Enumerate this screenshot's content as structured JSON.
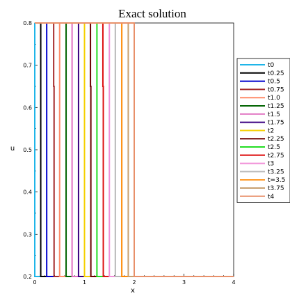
{
  "chart_data": {
    "type": "line",
    "title": "Exact solution",
    "xlabel": "x",
    "ylabel": "u",
    "xlim": [
      0,
      4
    ],
    "ylim": [
      0.2,
      0.8
    ],
    "xticks": [
      "0",
      "1",
      "2",
      "3",
      "4"
    ],
    "yticks": [
      "0.2",
      "0.3",
      "0.4",
      "0.5",
      "0.6",
      "0.7",
      "0.8"
    ],
    "grid": false,
    "legend_position": "right",
    "series": [
      {
        "name": "t0",
        "color": "#1fb5e8",
        "drop_x": 0.0,
        "mid_drop": false
      },
      {
        "name": "t0.25",
        "color": "#000000",
        "drop_x": 0.12,
        "mid_drop": false
      },
      {
        "name": "t0.5",
        "color": "#0000cc",
        "drop_x": 0.24,
        "mid_drop": false
      },
      {
        "name": "t0.75",
        "color": "#a52a2a",
        "drop_x": 0.38,
        "mid_drop": true
      },
      {
        "name": "t1.0",
        "color": "#ff8c69",
        "drop_x": 0.5,
        "mid_drop": false
      },
      {
        "name": "t1.25",
        "color": "#006400",
        "drop_x": 0.63,
        "mid_drop": false
      },
      {
        "name": "t1.5",
        "color": "#e070c0",
        "drop_x": 0.75,
        "mid_drop": false
      },
      {
        "name": "t1.75",
        "color": "#3a0080",
        "drop_x": 0.88,
        "mid_drop": false
      },
      {
        "name": "t2",
        "color": "#f5d000",
        "drop_x": 1.0,
        "mid_drop": false
      },
      {
        "name": "t2.25",
        "color": "#6b0000",
        "drop_x": 1.12,
        "mid_drop": true
      },
      {
        "name": "t2.5",
        "color": "#22dd22",
        "drop_x": 1.25,
        "mid_drop": false
      },
      {
        "name": "t2.75",
        "color": "#dd1111",
        "drop_x": 1.37,
        "mid_drop": true
      },
      {
        "name": "t3",
        "color": "#f090d8",
        "drop_x": 1.5,
        "mid_drop": false
      },
      {
        "name": "t3.25",
        "color": "#b8b8b8",
        "drop_x": 1.62,
        "mid_drop": false
      },
      {
        "name": "t=3.5",
        "color": "#ff8800",
        "drop_x": 1.75,
        "mid_drop": false
      },
      {
        "name": "t3.75",
        "color": "#c8a070",
        "drop_x": 1.88,
        "mid_drop": false
      },
      {
        "name": "t4",
        "color": "#e8906a",
        "drop_x": 2.0,
        "mid_drop": false
      }
    ]
  }
}
